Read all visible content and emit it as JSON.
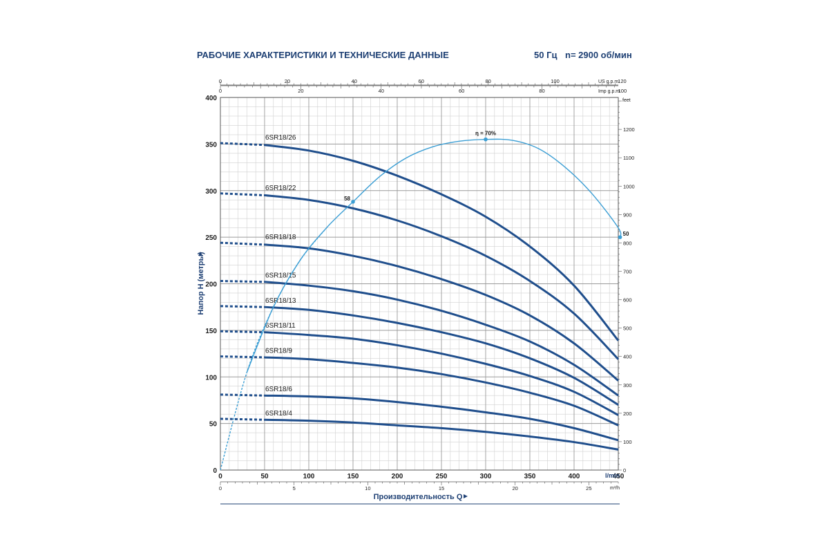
{
  "header": {
    "title": "РАБОЧИЕ ХАРАКТЕРИСТИКИ И ТЕХНИЧЕСКИЕ ДАННЫЕ",
    "frequency": "50 Гц",
    "speed": "n= 2900 об/мин"
  },
  "chart_data": {
    "type": "line",
    "xlabel": "Производительность Q",
    "ylabel": "Напор H (метры)",
    "x_unit": "l/min",
    "xlim": [
      0,
      450
    ],
    "ylim": [
      0,
      400
    ],
    "grid": true,
    "x_ticks": [
      0,
      50,
      100,
      150,
      200,
      250,
      300,
      350,
      400,
      450
    ],
    "y_ticks": [
      0,
      50,
      100,
      150,
      200,
      250,
      300,
      350,
      400
    ],
    "secondary_axes": {
      "us_gpm": {
        "unit": "US g.p.m.",
        "ticks": [
          0,
          20,
          40,
          60,
          80,
          100,
          120
        ],
        "factor": 0.264172
      },
      "imp_gpm": {
        "unit": "Imp g.p.m.",
        "ticks": [
          0,
          20,
          40,
          60,
          80,
          100
        ],
        "factor": 0.219969
      },
      "m3h": {
        "unit": "m³/h",
        "ticks": [
          0,
          5,
          10,
          15,
          20,
          25
        ],
        "factor": 0.06
      },
      "feet": {
        "unit": "feet",
        "ticks": [
          0,
          100,
          200,
          300,
          400,
          500,
          600,
          700,
          800,
          900,
          1000,
          1100,
          1200
        ],
        "factor": 3.28084
      }
    },
    "dashed_until_x": 50,
    "series": [
      {
        "name": "6SR18/26",
        "x": [
          0,
          50,
          100,
          150,
          200,
          250,
          300,
          350,
          400,
          450
        ],
        "y": [
          351,
          349,
          343,
          332,
          316,
          296,
          272,
          240,
          198,
          139
        ]
      },
      {
        "name": "6SR18/22",
        "x": [
          0,
          50,
          100,
          150,
          200,
          250,
          300,
          350,
          400,
          450
        ],
        "y": [
          297,
          295,
          290,
          281,
          268,
          251,
          230,
          203,
          168,
          119
        ]
      },
      {
        "name": "6SR18/18",
        "x": [
          0,
          50,
          100,
          150,
          200,
          250,
          300,
          350,
          400,
          450
        ],
        "y": [
          244,
          242,
          238,
          230,
          219,
          205,
          188,
          166,
          136,
          96
        ]
      },
      {
        "name": "6SR18/15",
        "x": [
          0,
          50,
          100,
          150,
          200,
          250,
          300,
          350,
          400,
          450
        ],
        "y": [
          203,
          202,
          198,
          192,
          183,
          171,
          156,
          138,
          113,
          80
        ]
      },
      {
        "name": "6SR18/13",
        "x": [
          0,
          50,
          100,
          150,
          200,
          250,
          300,
          350,
          400,
          450
        ],
        "y": [
          176,
          175,
          172,
          166,
          158,
          148,
          136,
          120,
          99,
          70
        ]
      },
      {
        "name": "6SR18/11",
        "x": [
          0,
          50,
          100,
          150,
          200,
          250,
          300,
          350,
          400,
          450
        ],
        "y": [
          149,
          148,
          145,
          141,
          134,
          125,
          114,
          101,
          84,
          59
        ]
      },
      {
        "name": "6SR18/9",
        "x": [
          0,
          50,
          100,
          150,
          200,
          250,
          300,
          350,
          400,
          450
        ],
        "y": [
          122,
          121,
          119,
          115,
          110,
          103,
          94,
          83,
          69,
          48
        ]
      },
      {
        "name": "6SR18/6",
        "x": [
          0,
          50,
          100,
          150,
          200,
          250,
          300,
          350,
          400,
          450
        ],
        "y": [
          81,
          80,
          79,
          77,
          73,
          68,
          62,
          55,
          45,
          32
        ]
      },
      {
        "name": "6SR18/4",
        "x": [
          0,
          50,
          100,
          150,
          200,
          250,
          300,
          350,
          400,
          450
        ],
        "y": [
          55,
          54,
          53,
          51,
          48,
          45,
          41,
          36,
          30,
          22
        ]
      }
    ],
    "efficiency_curve": {
      "x": [
        0,
        30,
        60,
        90,
        120,
        150,
        180,
        210,
        240,
        270,
        300,
        330,
        360,
        390,
        420,
        450,
        452
      ],
      "y": [
        0,
        105,
        175,
        225,
        260,
        288,
        315,
        335,
        347,
        353,
        355,
        354,
        345,
        325,
        297,
        260,
        250
      ],
      "annotations": [
        {
          "label": "η = 70%",
          "x": 300,
          "y": 355
        },
        {
          "label": "58",
          "x": 150,
          "y": 288
        },
        {
          "label": "50",
          "x": 452,
          "y": 250
        }
      ]
    }
  }
}
